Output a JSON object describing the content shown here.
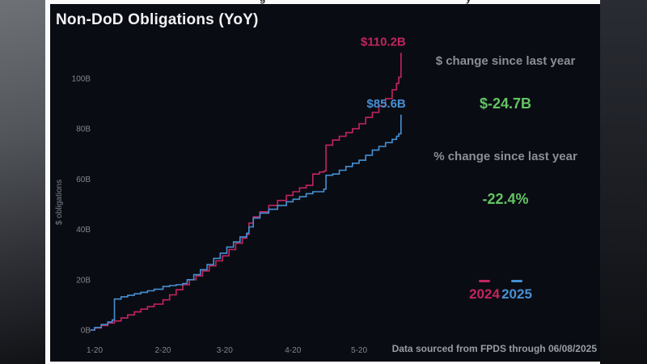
{
  "page": {
    "artifacts": [
      "g",
      "y"
    ]
  },
  "panel": {
    "title": "Non-DoD Obligations (YoY)",
    "footer": "Data sourced from FPDS through 06/08/2025"
  },
  "stats": {
    "dollar_label": "$ change since last year",
    "dollar_value": "$-24.7B",
    "pct_label": "% change since last year",
    "pct_value": "-22.4%"
  },
  "colors": {
    "pink": "#c2255f",
    "blue": "#4690d4",
    "green": "#62c462",
    "panel_bg": "#0a0c13",
    "label_gray": "#8b8e95"
  },
  "chart_data": {
    "type": "line",
    "title": "Non-DoD Obligations (YoY)",
    "ylabel": "$ obligations",
    "xlabel": "",
    "ylim": [
      0,
      115
    ],
    "grid": false,
    "legend_position": "right-bottom",
    "x_unit": "month-day of year, data through 06/08",
    "y_ticks": [
      {
        "v": 0,
        "label": "0B"
      },
      {
        "v": 20,
        "label": "20B"
      },
      {
        "v": 40,
        "label": "40B"
      },
      {
        "v": 60,
        "label": "60B"
      },
      {
        "v": 80,
        "label": "80B"
      },
      {
        "v": 100,
        "label": "100B"
      }
    ],
    "x_ticks": [
      {
        "day": 20,
        "label": "1-20"
      },
      {
        "day": 51,
        "label": "2-20"
      },
      {
        "day": 79,
        "label": "3-20"
      },
      {
        "day": 110,
        "label": "4-20"
      },
      {
        "day": 140,
        "label": "5-20"
      }
    ],
    "series": [
      {
        "name": "2024",
        "color_key": "pink",
        "end_label": "$110.2B",
        "final_value": 110.2,
        "points": [
          [
            18,
            0
          ],
          [
            20,
            0.8
          ],
          [
            23,
            1.8
          ],
          [
            26,
            2.8
          ],
          [
            29,
            3.6
          ],
          [
            32,
            4.8
          ],
          [
            35,
            6
          ],
          [
            38,
            7.2
          ],
          [
            41,
            8.3
          ],
          [
            44,
            9.3
          ],
          [
            47,
            10.3
          ],
          [
            51,
            12
          ],
          [
            54,
            14
          ],
          [
            57,
            16
          ],
          [
            60,
            18
          ],
          [
            63,
            20
          ],
          [
            66,
            21.5
          ],
          [
            69,
            23.5
          ],
          [
            72,
            25.5
          ],
          [
            75,
            27.5
          ],
          [
            78,
            29.5
          ],
          [
            81,
            32
          ],
          [
            84,
            34.5
          ],
          [
            87,
            36.5
          ],
          [
            89,
            38
          ],
          [
            90,
            42.5
          ],
          [
            92,
            45
          ],
          [
            95,
            47
          ],
          [
            99,
            49.5
          ],
          [
            103,
            51.5
          ],
          [
            107,
            53.5
          ],
          [
            110,
            55
          ],
          [
            113,
            56.5
          ],
          [
            116,
            57.5
          ],
          [
            119,
            62
          ],
          [
            122,
            62.8
          ],
          [
            124,
            63.2
          ],
          [
            125,
            73.5
          ],
          [
            128,
            75.5
          ],
          [
            131,
            77
          ],
          [
            134,
            78.5
          ],
          [
            137,
            80
          ],
          [
            140,
            82
          ],
          [
            143,
            84.5
          ],
          [
            146,
            86.5
          ],
          [
            149,
            89
          ],
          [
            152,
            92
          ],
          [
            155,
            95.5
          ],
          [
            157,
            98
          ],
          [
            158,
            100.5
          ],
          [
            159,
            110.2
          ]
        ]
      },
      {
        "name": "2025",
        "color_key": "blue",
        "end_label": "$85.6B",
        "final_value": 85.6,
        "points": [
          [
            18,
            0
          ],
          [
            20,
            1
          ],
          [
            23,
            2.2
          ],
          [
            26,
            3.2
          ],
          [
            28,
            4
          ],
          [
            29,
            12.3
          ],
          [
            32,
            13.2
          ],
          [
            35,
            13.8
          ],
          [
            38,
            14.4
          ],
          [
            41,
            15
          ],
          [
            44,
            15.6
          ],
          [
            47,
            16.2
          ],
          [
            51,
            17.3
          ],
          [
            54,
            17.7
          ],
          [
            57,
            18
          ],
          [
            60,
            18.5
          ],
          [
            62,
            20
          ],
          [
            65,
            22
          ],
          [
            68,
            24
          ],
          [
            71,
            26
          ],
          [
            74,
            28.5
          ],
          [
            77,
            30.5
          ],
          [
            80,
            33
          ],
          [
            83,
            35
          ],
          [
            86,
            37
          ],
          [
            89,
            38.5
          ],
          [
            90,
            41
          ],
          [
            92,
            44.5
          ],
          [
            95,
            46.5
          ],
          [
            99,
            48
          ],
          [
            103,
            49.5
          ],
          [
            107,
            51
          ],
          [
            110,
            52
          ],
          [
            113,
            53
          ],
          [
            116,
            54.2
          ],
          [
            119,
            55
          ],
          [
            124,
            56
          ],
          [
            125,
            61.5
          ],
          [
            128,
            62
          ],
          [
            131,
            63.5
          ],
          [
            134,
            65
          ],
          [
            137,
            66.3
          ],
          [
            140,
            67.5
          ],
          [
            143,
            69.5
          ],
          [
            146,
            71.5
          ],
          [
            149,
            73
          ],
          [
            152,
            74.5
          ],
          [
            155,
            75.8
          ],
          [
            157,
            77
          ],
          [
            158,
            78
          ],
          [
            159,
            85.6
          ]
        ]
      }
    ]
  }
}
